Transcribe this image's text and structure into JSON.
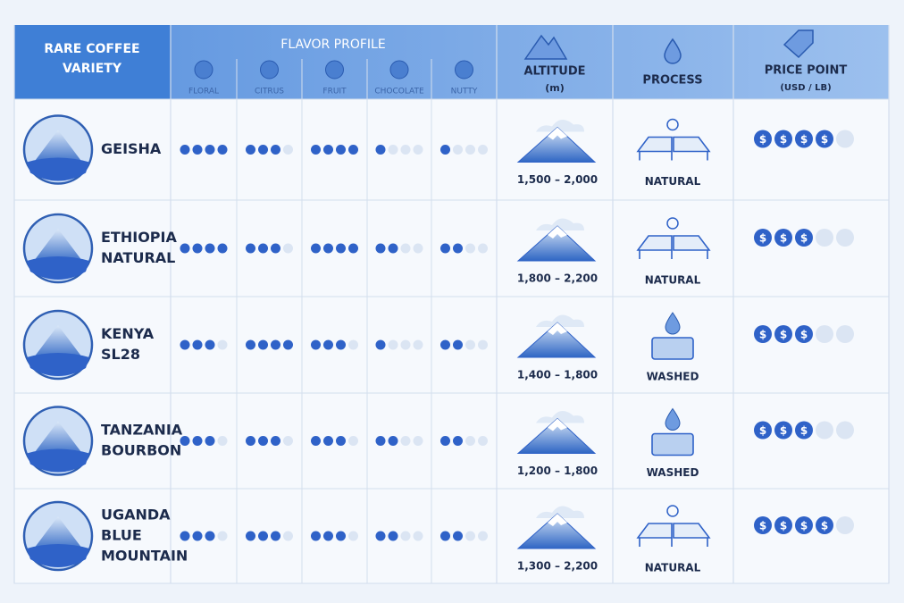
{
  "header": {
    "variety": [
      "RARE COFFEE",
      "VARIETY"
    ],
    "flavor": "FLAVOR PROFILE",
    "flavors": [
      "FLORAL",
      "CITRUS",
      "FRUIT",
      "CHOCOLATE",
      "NUTTY"
    ],
    "altitude": "ALTITUDE",
    "altitude_unit": "(m)",
    "process": "PROCESS",
    "price": "PRICE POINT",
    "price_unit": "(USD / LB)"
  },
  "flavor_scale": 4,
  "price_scale": 5,
  "currency_symbol": "$",
  "rows": [
    {
      "name": [
        "GEISHA"
      ],
      "flavor": [
        4,
        3,
        4,
        1,
        1
      ],
      "altitude": "1,500 – 2,000",
      "process": "NATURAL",
      "price": 4
    },
    {
      "name": [
        "ETHIOPIA",
        "NATURAL"
      ],
      "flavor": [
        4,
        3,
        4,
        2,
        2
      ],
      "altitude": "1,800 – 2,200",
      "process": "NATURAL",
      "price": 3
    },
    {
      "name": [
        "KENYA",
        "SL28"
      ],
      "flavor": [
        3,
        4,
        3,
        1,
        2
      ],
      "altitude": "1,400 – 1,800",
      "process": "WASHED",
      "price": 3
    },
    {
      "name": [
        "TANZANIA",
        "BOURBON"
      ],
      "flavor": [
        3,
        3,
        3,
        2,
        2
      ],
      "altitude": "1,200 – 1,800",
      "process": "WASHED",
      "price": 3
    },
    {
      "name": [
        "UGANDA",
        "BLUE",
        "MOUNTAIN"
      ],
      "flavor": [
        3,
        3,
        3,
        2,
        2
      ],
      "altitude": "1,300 – 2,200",
      "process": "NATURAL",
      "price": 4
    }
  ]
}
